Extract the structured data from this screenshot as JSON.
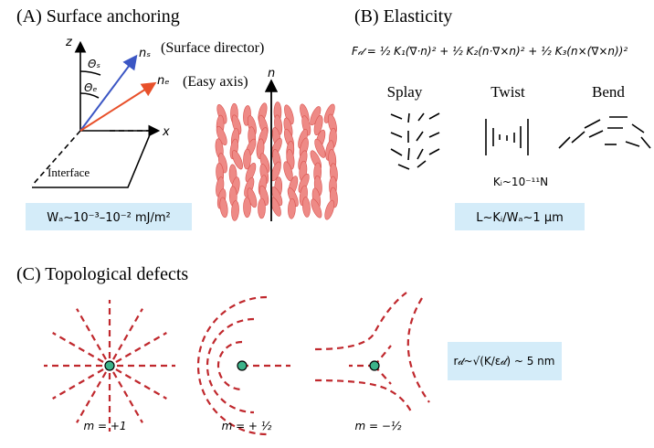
{
  "panel_a": {
    "title": "(A) Surface anchoring",
    "axis_z": "z",
    "axis_x": "x",
    "n_s": "nₛ",
    "surface_director": "(Surface director)",
    "n_e": "nₑ",
    "easy_axis": "(Easy axis)",
    "theta_s": "Θₛ",
    "theta_e": "Θₑ",
    "interface": "Interface",
    "director": "n",
    "anchoring": "Wₐ~10⁻³–10⁻² mJ/m²"
  },
  "panel_b": {
    "title": "(B) Elasticity",
    "formula": "F𝒹 = ½ K₁(∇·n)² + ½ K₂(n·∇×n)² + ½ K₃(n×(∇×n))²",
    "splay": "Splay",
    "twist": "Twist",
    "bend": "Bend",
    "constant": "Kᵢ~10⁻¹¹N",
    "length": "L~Kᵢ/Wₐ~1 μm"
  },
  "panel_c": {
    "title": "(C) Topological defects",
    "core": "r𝒹~√(K/ε𝒹) ~ 5 nm",
    "m_plus_one": "m = +1",
    "m_plus_half": "m = + ½",
    "m_minus_half": "m = −½"
  }
}
